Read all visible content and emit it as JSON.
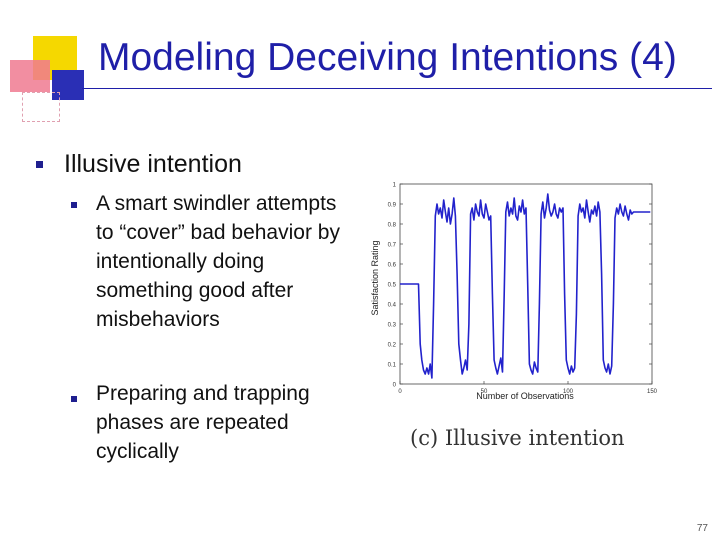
{
  "slide": {
    "title": "Modeling Deceiving Intentions (4)",
    "page_number": "77",
    "accent_colors": {
      "title": "#1f1fa8",
      "yellow": "#f5d800",
      "red": "#e8334a",
      "blue": "#2a2fb5",
      "line": "#2222cc"
    }
  },
  "bullets": {
    "level1": "Illusive intention",
    "level2": [
      "A smart swindler attempts to “cover” bad behavior by intentionally doing something good after misbehaviors",
      "Preparing and trapping phases are repeated cyclically"
    ]
  },
  "figure": {
    "caption": "(c)  Illusive intention"
  },
  "chart_data": {
    "type": "line",
    "xlabel": "Number of Observations",
    "ylabel": "Satisfaction Rating",
    "xlim": [
      0,
      150
    ],
    "ylim": [
      0,
      1
    ],
    "xticks": [
      "0",
      "50",
      "100",
      "150"
    ],
    "yticks": [
      "0",
      "0.1",
      "0.2",
      "0.3",
      "0.4",
      "0.5",
      "0.6",
      "0.7",
      "0.8",
      "0.9",
      "1"
    ],
    "grid": false,
    "series": [
      {
        "color": "#2222cc",
        "x": [
          0,
          1,
          2,
          3,
          4,
          5,
          6,
          7,
          8,
          9,
          10,
          11,
          12,
          13,
          14,
          15,
          16,
          17,
          18,
          19,
          20,
          21,
          22,
          23,
          24,
          25,
          26,
          27,
          28,
          29,
          30,
          31,
          32,
          33,
          34,
          35,
          36,
          37,
          38,
          39,
          40,
          41,
          42,
          43,
          44,
          45,
          46,
          47,
          48,
          49,
          50,
          51,
          52,
          53,
          54,
          55,
          56,
          57,
          58,
          59,
          60,
          61,
          62,
          63,
          64,
          65,
          66,
          67,
          68,
          69,
          70,
          71,
          72,
          73,
          74,
          75,
          76,
          77,
          78,
          79,
          80,
          81,
          82,
          83,
          84,
          85,
          86,
          87,
          88,
          89,
          90,
          91,
          92,
          93,
          94,
          95,
          96,
          97,
          98,
          99,
          100,
          101,
          102,
          103,
          104,
          105,
          106,
          107,
          108,
          109,
          110,
          111,
          112,
          113,
          114,
          115,
          116,
          117,
          118,
          119,
          120,
          121,
          122,
          123,
          124,
          125,
          126,
          127,
          128,
          129,
          130,
          131,
          132,
          133,
          134,
          135,
          136,
          137,
          138,
          139,
          140,
          141,
          142,
          143,
          144,
          145,
          146,
          147,
          148,
          149
        ],
        "y": [
          0.5,
          0.5,
          0.5,
          0.5,
          0.5,
          0.5,
          0.5,
          0.5,
          0.5,
          0.5,
          0.5,
          0.5,
          0.2,
          0.12,
          0.07,
          0.05,
          0.08,
          0.05,
          0.1,
          0.03,
          0.4,
          0.84,
          0.9,
          0.85,
          0.88,
          0.83,
          0.92,
          0.86,
          0.81,
          0.88,
          0.8,
          0.85,
          0.93,
          0.84,
          0.55,
          0.2,
          0.12,
          0.05,
          0.08,
          0.12,
          0.07,
          0.3,
          0.85,
          0.88,
          0.82,
          0.9,
          0.86,
          0.84,
          0.92,
          0.85,
          0.83,
          0.9,
          0.86,
          0.82,
          0.84,
          0.45,
          0.12,
          0.08,
          0.05,
          0.09,
          0.13,
          0.06,
          0.45,
          0.86,
          0.91,
          0.84,
          0.88,
          0.85,
          0.93,
          0.84,
          0.82,
          0.89,
          0.86,
          0.92,
          0.85,
          0.88,
          0.5,
          0.1,
          0.07,
          0.05,
          0.11,
          0.08,
          0.06,
          0.4,
          0.85,
          0.91,
          0.83,
          0.88,
          0.95,
          0.87,
          0.84,
          0.86,
          0.9,
          0.85,
          0.83,
          0.88,
          0.86,
          0.88,
          0.45,
          0.12,
          0.08,
          0.05,
          0.09,
          0.06,
          0.08,
          0.35,
          0.84,
          0.9,
          0.86,
          0.88,
          0.83,
          0.92,
          0.86,
          0.81,
          0.87,
          0.85,
          0.89,
          0.84,
          0.91,
          0.86,
          0.55,
          0.12,
          0.08,
          0.06,
          0.1,
          0.05,
          0.09,
          0.4,
          0.83,
          0.88,
          0.85,
          0.9,
          0.86,
          0.84,
          0.89,
          0.85,
          0.82,
          0.87,
          0.85,
          0.86,
          0.86,
          0.86,
          0.86,
          0.86,
          0.86,
          0.86,
          0.86,
          0.86,
          0.86,
          0.86
        ]
      }
    ]
  }
}
